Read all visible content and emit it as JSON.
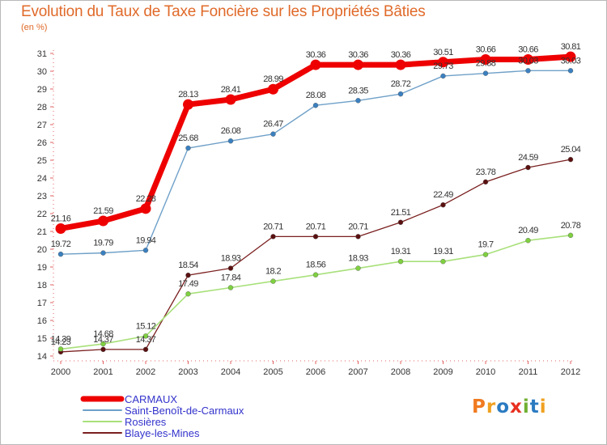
{
  "chart_data": {
    "type": "line",
    "title": "Evolution du Taux de Taxe Foncière sur les Propriétés Bâties",
    "unit_label": "(en %)",
    "x": [
      "2000",
      "2001",
      "2002",
      "2003",
      "2004",
      "2005",
      "2006",
      "2007",
      "2008",
      "2009",
      "2010",
      "2011",
      "2012"
    ],
    "ylim": [
      14,
      31
    ],
    "yticks": [
      14,
      15,
      16,
      17,
      18,
      19,
      20,
      21,
      22,
      23,
      24,
      25,
      26,
      27,
      28,
      29,
      30,
      31
    ],
    "grid": false,
    "legend_position": "bottom-left",
    "series": [
      {
        "name": "Blaye-les-Mines",
        "color": "#7a1f1f",
        "marker": "#5a1010",
        "width": 1.3,
        "values": [
          14.23,
          14.37,
          14.37,
          18.54,
          18.93,
          20.71,
          20.71,
          20.71,
          21.51,
          22.49,
          23.78,
          24.59,
          25.04
        ],
        "labels": [
          "14.23",
          "14.37",
          "14.37",
          "18.54",
          "18.93",
          "20.71",
          "20.71",
          "20.71",
          "21.51",
          "22.49",
          "23.78",
          "24.59",
          "25.04"
        ]
      },
      {
        "name": "Rosières",
        "color": "#a8e07a",
        "marker": "#7fd040",
        "width": 1.6,
        "values": [
          14.39,
          14.68,
          15.12,
          17.49,
          17.84,
          18.2,
          18.56,
          18.93,
          19.31,
          19.31,
          19.7,
          20.49,
          20.78
        ],
        "labels": [
          "14.39",
          "14.68",
          "15.12",
          "17.49",
          "17.84",
          "18.2",
          "18.56",
          "18.93",
          "19.31",
          "19.31",
          "19.7",
          "20.49",
          "20.78"
        ]
      },
      {
        "name": "Saint-Benoît-de-Carmaux",
        "color": "#6fa0c8",
        "marker": "#3a80c0",
        "width": 1.4,
        "values": [
          19.72,
          19.79,
          19.94,
          25.68,
          26.08,
          26.47,
          28.08,
          28.35,
          28.72,
          29.73,
          29.88,
          30.03,
          30.03
        ],
        "labels": [
          "19.72",
          "19.79",
          "19.94",
          "25.68",
          "26.08",
          "26.47",
          "28.08",
          "28.35",
          "28.72",
          "29.73",
          "29.88",
          "30.03",
          "30.03"
        ]
      },
      {
        "name": "CARMAUX",
        "color": "#ee0000",
        "marker": "#ee0000",
        "width": 7,
        "values": [
          21.16,
          21.59,
          22.28,
          28.13,
          28.41,
          28.99,
          30.36,
          30.36,
          30.36,
          30.51,
          30.66,
          30.66,
          30.81
        ],
        "labels": [
          "21.16",
          "21.59",
          "22.28",
          "28.13",
          "28.41",
          "28.99",
          "30.36",
          "30.36",
          "30.36",
          "30.51",
          "30.66",
          "30.66",
          "30.81"
        ]
      }
    ],
    "legend": [
      {
        "name": "CARMAUX",
        "color": "#ee0000",
        "thick": true
      },
      {
        "name": "Saint-Benoît-de-Carmaux",
        "color": "#6fa0c8",
        "thick": false
      },
      {
        "name": "Rosières",
        "color": "#a8e07a",
        "thick": false
      },
      {
        "name": "Blaye-les-Mines",
        "color": "#7a1f1f",
        "thick": false
      }
    ],
    "legend_text_color": "#3333cc"
  },
  "logo": {
    "text": "Proxiti",
    "colors": [
      "#f07a20",
      "#f0a020",
      "#2a7ac0",
      "#e83020",
      "#70b030",
      "#2a7ac0",
      "#f0a020"
    ]
  }
}
